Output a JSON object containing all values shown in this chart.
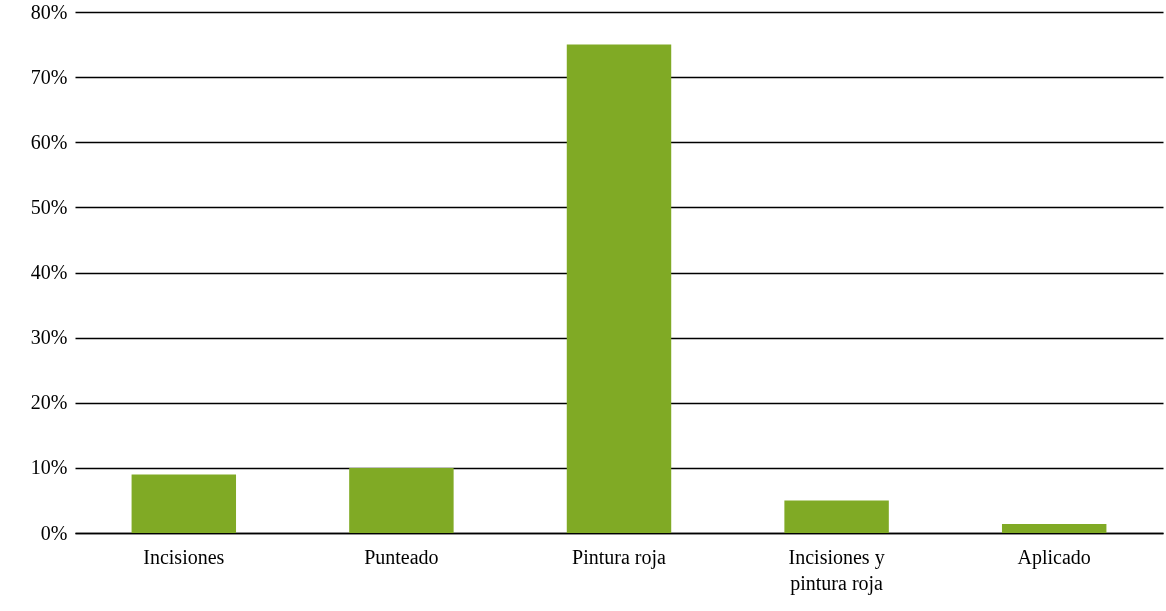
{
  "chart_data": {
    "type": "bar",
    "categories": [
      "Incisiones",
      "Punteado",
      "Pintura roja",
      "Incisiones y pintura roja",
      "Aplicado"
    ],
    "values": [
      9,
      10,
      75,
      5,
      1.4
    ],
    "color": "#80aa25",
    "ylim": [
      0,
      80
    ],
    "yticks": [
      {
        "value": 0,
        "label": "0%"
      },
      {
        "value": 10,
        "label": "10%"
      },
      {
        "value": 20,
        "label": "20%"
      },
      {
        "value": 30,
        "label": "30%"
      },
      {
        "value": 40,
        "label": "40%"
      },
      {
        "value": 50,
        "label": "50%"
      },
      {
        "value": 60,
        "label": "60%"
      },
      {
        "value": 70,
        "label": "70%"
      },
      {
        "value": 80,
        "label": "80%"
      }
    ],
    "grid": "y"
  }
}
